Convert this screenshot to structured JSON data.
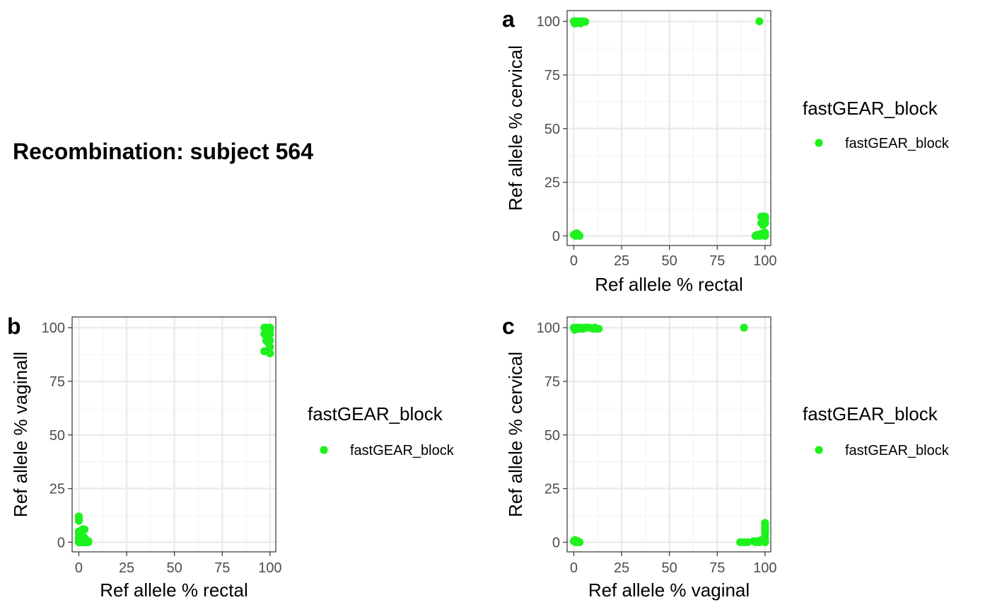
{
  "figure": {
    "title": "Recombination: subject 564"
  },
  "colors": {
    "point": "#1ef21e",
    "grid_major": "#ebebeb",
    "grid_minor": "#f4f4f4",
    "panel_border": "#333333"
  },
  "chart_data": [
    {
      "tag": "a",
      "type": "scatter",
      "xlabel": "Ref allele % rectal",
      "ylabel": "Ref allele % cervical",
      "xlim": [
        -3.5,
        103
      ],
      "ylim": [
        -4.5,
        105
      ],
      "x_ticks": [
        0,
        25,
        50,
        75,
        100
      ],
      "y_ticks": [
        0,
        25,
        50,
        75,
        100
      ],
      "grid": true,
      "legend": {
        "title": "fastGEAR_block",
        "label": "fastGEAR_block",
        "position": "right"
      },
      "points": [
        [
          0,
          100
        ],
        [
          0.5,
          99
        ],
        [
          1,
          100
        ],
        [
          2,
          99.5
        ],
        [
          3,
          100
        ],
        [
          4,
          99.5
        ],
        [
          5,
          100
        ],
        [
          6,
          99.8
        ],
        [
          1.5,
          99.2
        ],
        [
          3.5,
          99
        ],
        [
          97,
          100
        ],
        [
          0,
          0.5
        ],
        [
          1,
          0
        ],
        [
          2,
          0.8
        ],
        [
          3,
          0
        ],
        [
          1.5,
          1.2
        ],
        [
          95,
          0
        ],
        [
          96,
          0.5
        ],
        [
          97,
          0
        ],
        [
          98,
          1
        ],
        [
          99,
          0.5
        ],
        [
          100,
          0
        ],
        [
          100,
          1.5
        ],
        [
          98,
          9
        ],
        [
          99,
          9
        ],
        [
          100,
          9
        ],
        [
          99,
          7
        ],
        [
          100,
          8
        ],
        [
          98,
          6
        ],
        [
          100,
          6
        ],
        [
          99,
          5
        ]
      ]
    },
    {
      "tag": "b",
      "type": "scatter",
      "xlabel": "Ref allele % rectal",
      "ylabel": "Ref allele % vaginall",
      "xlim": [
        -3.5,
        103
      ],
      "ylim": [
        -4.5,
        105
      ],
      "x_ticks": [
        0,
        25,
        50,
        75,
        100
      ],
      "y_ticks": [
        0,
        25,
        50,
        75,
        100
      ],
      "grid": true,
      "legend": {
        "title": "fastGEAR_block",
        "label": "fastGEAR_block",
        "position": "right"
      },
      "points": [
        [
          97,
          100
        ],
        [
          98,
          100
        ],
        [
          99,
          100
        ],
        [
          100,
          100
        ],
        [
          98,
          99
        ],
        [
          100,
          99
        ],
        [
          97,
          97
        ],
        [
          99,
          97
        ],
        [
          100,
          97
        ],
        [
          98,
          94
        ],
        [
          100,
          94
        ],
        [
          99,
          93
        ],
        [
          100,
          91
        ],
        [
          98,
          89
        ],
        [
          97,
          89
        ],
        [
          100,
          88
        ],
        [
          0,
          12
        ],
        [
          0,
          11
        ],
        [
          0,
          10
        ],
        [
          0,
          5
        ],
        [
          0,
          4
        ],
        [
          0,
          2
        ],
        [
          0,
          1
        ],
        [
          0,
          0
        ],
        [
          1,
          1
        ],
        [
          1,
          0
        ],
        [
          1.5,
          3
        ],
        [
          2,
          3
        ],
        [
          2,
          1
        ],
        [
          2,
          0
        ],
        [
          2,
          6
        ],
        [
          3,
          6
        ],
        [
          3,
          0
        ],
        [
          3,
          2
        ],
        [
          4,
          0
        ],
        [
          4,
          1
        ],
        [
          5,
          0
        ],
        [
          5,
          0.5
        ],
        [
          0.5,
          0.5
        ],
        [
          0.5,
          2
        ]
      ]
    },
    {
      "tag": "c",
      "type": "scatter",
      "xlabel": "Ref allele % vaginal",
      "ylabel": "Ref allele % cervical",
      "xlim": [
        -3.5,
        103
      ],
      "ylim": [
        -4.5,
        105
      ],
      "x_ticks": [
        0,
        25,
        50,
        75,
        100
      ],
      "y_ticks": [
        0,
        25,
        50,
        75,
        100
      ],
      "grid": true,
      "legend": {
        "title": "fastGEAR_block",
        "label": "fastGEAR_block",
        "position": "right"
      },
      "points": [
        [
          0,
          100
        ],
        [
          1,
          99.5
        ],
        [
          2,
          100
        ],
        [
          3,
          99.5
        ],
        [
          4,
          100
        ],
        [
          5,
          99.5
        ],
        [
          6,
          100
        ],
        [
          7,
          100
        ],
        [
          8,
          100
        ],
        [
          10,
          99.5
        ],
        [
          11,
          100
        ],
        [
          12,
          99.5
        ],
        [
          13,
          99.5
        ],
        [
          1.5,
          100
        ],
        [
          0.5,
          99
        ],
        [
          89,
          100
        ],
        [
          0,
          0.5
        ],
        [
          1,
          0
        ],
        [
          2,
          0.5
        ],
        [
          3,
          0
        ],
        [
          0.5,
          1
        ],
        [
          87,
          0
        ],
        [
          89,
          0
        ],
        [
          91,
          0
        ],
        [
          94,
          0.5
        ],
        [
          95,
          0
        ],
        [
          96,
          0.5
        ],
        [
          97,
          0
        ],
        [
          98,
          1
        ],
        [
          99,
          0.5
        ],
        [
          100,
          0
        ],
        [
          100,
          9
        ],
        [
          100,
          8
        ],
        [
          100,
          7
        ],
        [
          100,
          6
        ],
        [
          100,
          5
        ],
        [
          100,
          4
        ],
        [
          100,
          2
        ],
        [
          100,
          1
        ]
      ]
    }
  ]
}
